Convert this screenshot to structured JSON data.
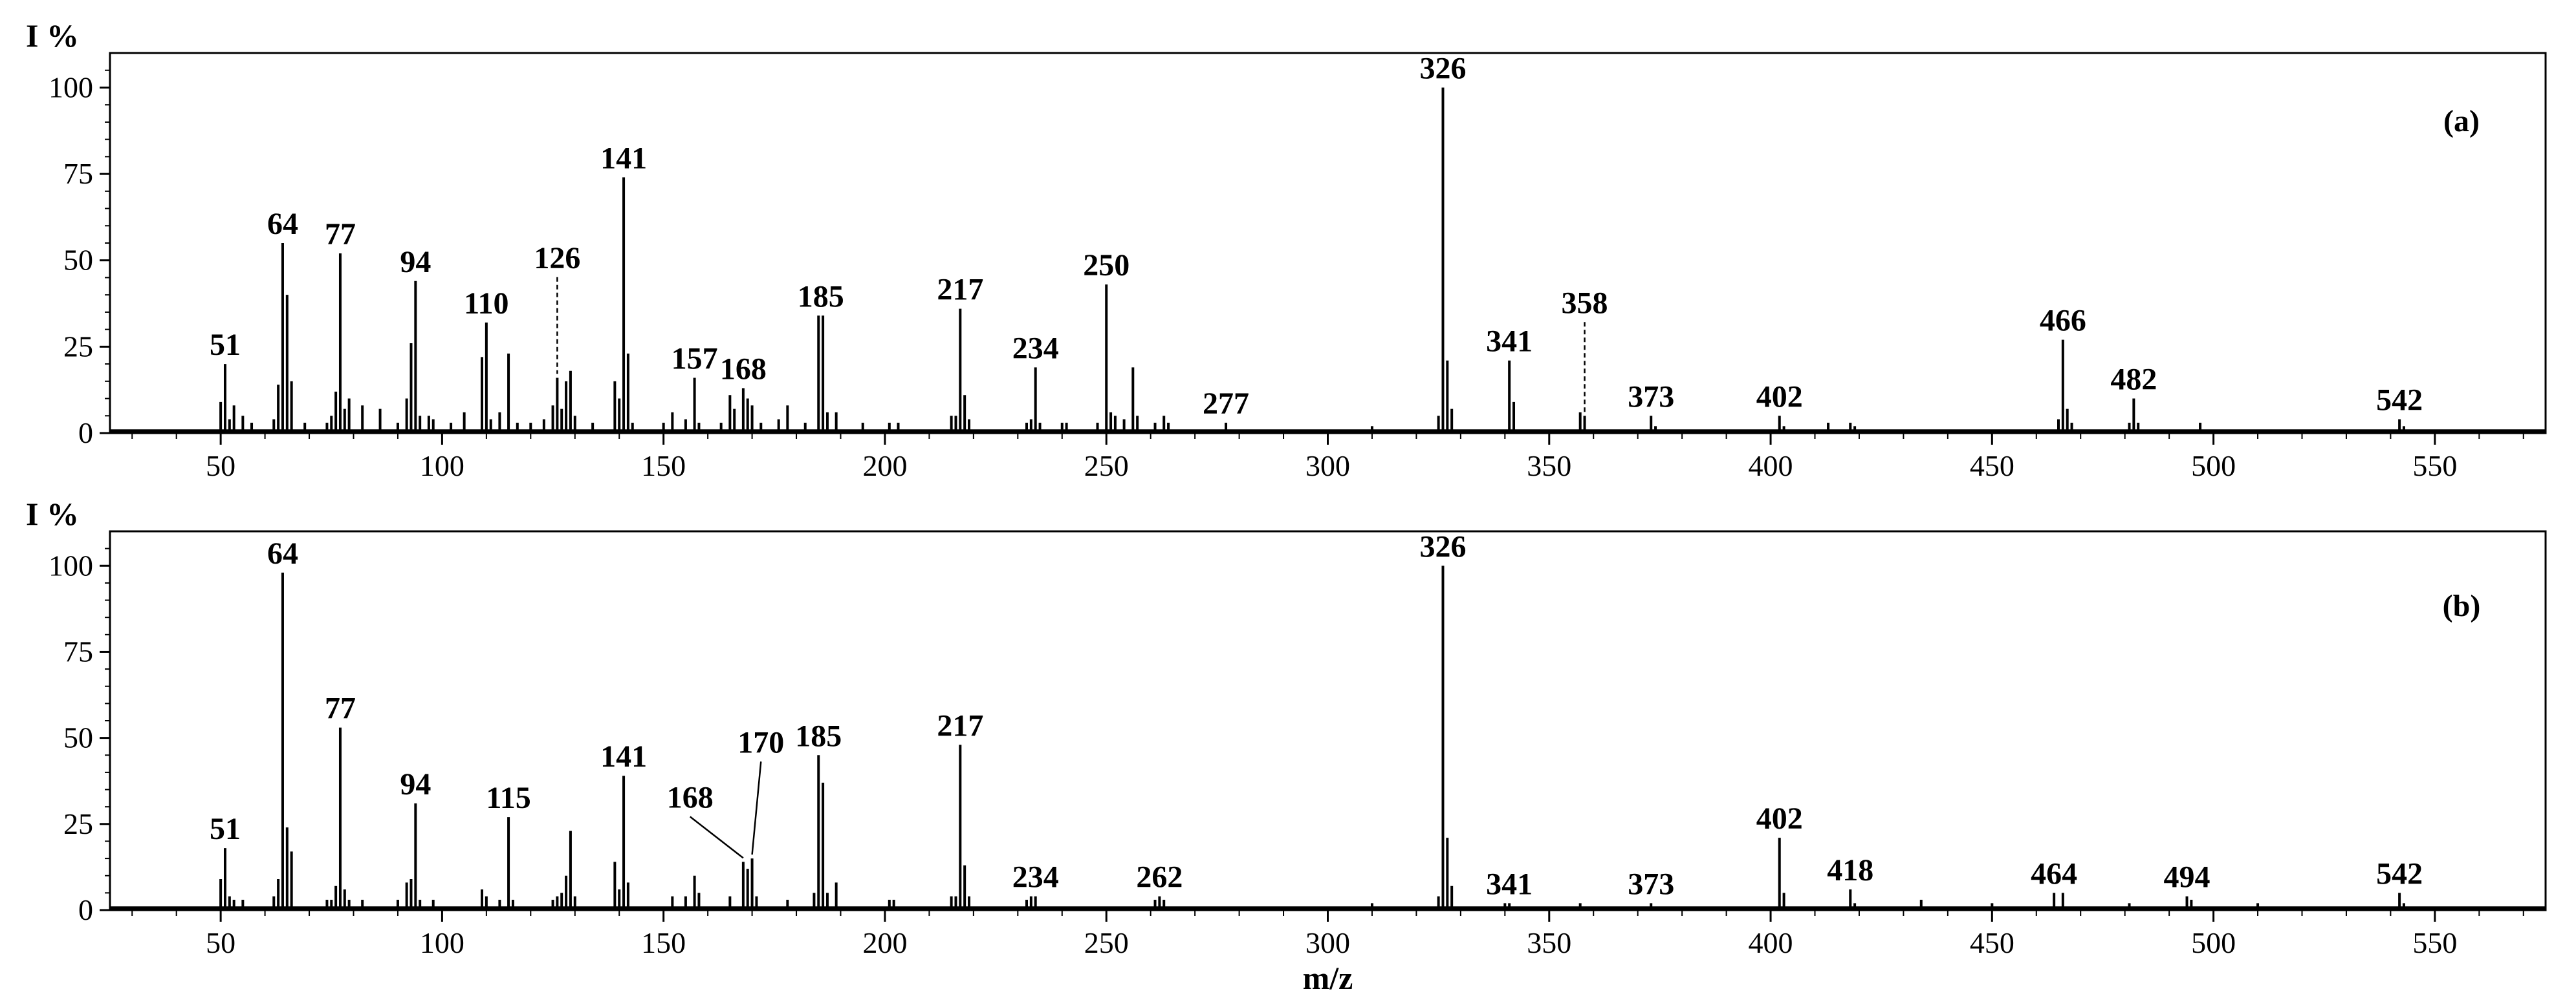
{
  "chart_data": [
    {
      "type": "bar",
      "panel_label": "(a)",
      "ylabel": "I %",
      "xlabel": "",
      "xlim": [
        25,
        575
      ],
      "ylim": [
        0,
        110
      ],
      "x_ticks": [
        50,
        100,
        150,
        200,
        250,
        300,
        350,
        400,
        450,
        500,
        550
      ],
      "y_ticks": [
        0,
        25,
        50,
        75,
        100
      ],
      "grid": false,
      "peaks": [
        {
          "x": 50,
          "y": 9
        },
        {
          "x": 51,
          "y": 20
        },
        {
          "x": 52,
          "y": 4
        },
        {
          "x": 53,
          "y": 8
        },
        {
          "x": 55,
          "y": 5
        },
        {
          "x": 57,
          "y": 3
        },
        {
          "x": 62,
          "y": 4
        },
        {
          "x": 63,
          "y": 14
        },
        {
          "x": 64,
          "y": 55
        },
        {
          "x": 65,
          "y": 40
        },
        {
          "x": 66,
          "y": 15
        },
        {
          "x": 69,
          "y": 3
        },
        {
          "x": 74,
          "y": 3
        },
        {
          "x": 75,
          "y": 5
        },
        {
          "x": 76,
          "y": 12
        },
        {
          "x": 77,
          "y": 52
        },
        {
          "x": 78,
          "y": 7
        },
        {
          "x": 79,
          "y": 10
        },
        {
          "x": 82,
          "y": 8
        },
        {
          "x": 86,
          "y": 7
        },
        {
          "x": 90,
          "y": 3
        },
        {
          "x": 92,
          "y": 10
        },
        {
          "x": 93,
          "y": 26
        },
        {
          "x": 94,
          "y": 44
        },
        {
          "x": 95,
          "y": 5
        },
        {
          "x": 97,
          "y": 5
        },
        {
          "x": 98,
          "y": 4
        },
        {
          "x": 102,
          "y": 3
        },
        {
          "x": 105,
          "y": 6
        },
        {
          "x": 109,
          "y": 22
        },
        {
          "x": 110,
          "y": 32
        },
        {
          "x": 111,
          "y": 4
        },
        {
          "x": 113,
          "y": 6
        },
        {
          "x": 115,
          "y": 23
        },
        {
          "x": 117,
          "y": 3
        },
        {
          "x": 120,
          "y": 3
        },
        {
          "x": 123,
          "y": 4
        },
        {
          "x": 125,
          "y": 8
        },
        {
          "x": 126,
          "y": 16
        },
        {
          "x": 127,
          "y": 7
        },
        {
          "x": 128,
          "y": 15
        },
        {
          "x": 129,
          "y": 18
        },
        {
          "x": 130,
          "y": 5
        },
        {
          "x": 134,
          "y": 3
        },
        {
          "x": 139,
          "y": 15
        },
        {
          "x": 140,
          "y": 10
        },
        {
          "x": 141,
          "y": 74
        },
        {
          "x": 142,
          "y": 23
        },
        {
          "x": 143,
          "y": 3
        },
        {
          "x": 150,
          "y": 3
        },
        {
          "x": 152,
          "y": 6
        },
        {
          "x": 155,
          "y": 4
        },
        {
          "x": 157,
          "y": 16
        },
        {
          "x": 158,
          "y": 3
        },
        {
          "x": 163,
          "y": 3
        },
        {
          "x": 165,
          "y": 11
        },
        {
          "x": 166,
          "y": 7
        },
        {
          "x": 168,
          "y": 13
        },
        {
          "x": 169,
          "y": 10
        },
        {
          "x": 170,
          "y": 8
        },
        {
          "x": 172,
          "y": 3
        },
        {
          "x": 176,
          "y": 4
        },
        {
          "x": 178,
          "y": 8
        },
        {
          "x": 182,
          "y": 3
        },
        {
          "x": 185,
          "y": 34
        },
        {
          "x": 186,
          "y": 34
        },
        {
          "x": 187,
          "y": 6
        },
        {
          "x": 189,
          "y": 6
        },
        {
          "x": 195,
          "y": 3
        },
        {
          "x": 201,
          "y": 3
        },
        {
          "x": 203,
          "y": 3
        },
        {
          "x": 215,
          "y": 5
        },
        {
          "x": 216,
          "y": 5
        },
        {
          "x": 217,
          "y": 36
        },
        {
          "x": 218,
          "y": 11
        },
        {
          "x": 219,
          "y": 4
        },
        {
          "x": 232,
          "y": 3
        },
        {
          "x": 233,
          "y": 4
        },
        {
          "x": 234,
          "y": 19
        },
        {
          "x": 235,
          "y": 3
        },
        {
          "x": 240,
          "y": 3
        },
        {
          "x": 241,
          "y": 3
        },
        {
          "x": 248,
          "y": 3
        },
        {
          "x": 250,
          "y": 43
        },
        {
          "x": 251,
          "y": 6
        },
        {
          "x": 252,
          "y": 5
        },
        {
          "x": 254,
          "y": 4
        },
        {
          "x": 256,
          "y": 19
        },
        {
          "x": 257,
          "y": 5
        },
        {
          "x": 261,
          "y": 3
        },
        {
          "x": 263,
          "y": 5
        },
        {
          "x": 264,
          "y": 3
        },
        {
          "x": 277,
          "y": 3
        },
        {
          "x": 310,
          "y": 2
        },
        {
          "x": 325,
          "y": 5
        },
        {
          "x": 326,
          "y": 100
        },
        {
          "x": 327,
          "y": 21
        },
        {
          "x": 328,
          "y": 7
        },
        {
          "x": 341,
          "y": 21
        },
        {
          "x": 342,
          "y": 9
        },
        {
          "x": 357,
          "y": 6
        },
        {
          "x": 358,
          "y": 5
        },
        {
          "x": 373,
          "y": 5
        },
        {
          "x": 374,
          "y": 2
        },
        {
          "x": 402,
          "y": 5
        },
        {
          "x": 403,
          "y": 2
        },
        {
          "x": 413,
          "y": 3
        },
        {
          "x": 418,
          "y": 3
        },
        {
          "x": 419,
          "y": 2
        },
        {
          "x": 465,
          "y": 4
        },
        {
          "x": 466,
          "y": 27
        },
        {
          "x": 467,
          "y": 7
        },
        {
          "x": 468,
          "y": 3
        },
        {
          "x": 481,
          "y": 3
        },
        {
          "x": 482,
          "y": 10
        },
        {
          "x": 483,
          "y": 3
        },
        {
          "x": 497,
          "y": 3
        },
        {
          "x": 542,
          "y": 4
        },
        {
          "x": 543,
          "y": 2
        }
      ],
      "annotations": [
        {
          "text": "51",
          "x": 51,
          "y": 20
        },
        {
          "text": "64",
          "x": 64,
          "y": 55
        },
        {
          "text": "77",
          "x": 77,
          "y": 52
        },
        {
          "text": "94",
          "x": 94,
          "y": 44
        },
        {
          "text": "110",
          "x": 110,
          "y": 32
        },
        {
          "text": "126",
          "x": 126,
          "y": 16,
          "label_y": 47
        },
        {
          "text": "141",
          "x": 141,
          "y": 74
        },
        {
          "text": "157",
          "x": 157,
          "y": 16
        },
        {
          "text": "168",
          "x": 168,
          "y": 13
        },
        {
          "text": "185",
          "x": 185.5,
          "y": 34
        },
        {
          "text": "217",
          "x": 217,
          "y": 36
        },
        {
          "text": "234",
          "x": 234,
          "y": 19
        },
        {
          "text": "250",
          "x": 250,
          "y": 43
        },
        {
          "text": "277",
          "x": 277,
          "y": 3
        },
        {
          "text": "326",
          "x": 326,
          "y": 100
        },
        {
          "text": "341",
          "x": 341,
          "y": 21
        },
        {
          "text": "358",
          "x": 358,
          "y": 5,
          "label_y": 34
        },
        {
          "text": "373",
          "x": 373,
          "y": 5
        },
        {
          "text": "402",
          "x": 402,
          "y": 5
        },
        {
          "text": "466",
          "x": 466,
          "y": 27
        },
        {
          "text": "482",
          "x": 482,
          "y": 10
        },
        {
          "text": "542",
          "x": 542,
          "y": 4
        }
      ]
    },
    {
      "type": "bar",
      "panel_label": "(b)",
      "ylabel": "I %",
      "xlabel": "m/z",
      "xlim": [
        25,
        575
      ],
      "ylim": [
        0,
        110
      ],
      "x_ticks": [
        50,
        100,
        150,
        200,
        250,
        300,
        350,
        400,
        450,
        500,
        550
      ],
      "y_ticks": [
        0,
        25,
        50,
        75,
        100
      ],
      "grid": false,
      "peaks": [
        {
          "x": 50,
          "y": 9
        },
        {
          "x": 51,
          "y": 18
        },
        {
          "x": 52,
          "y": 4
        },
        {
          "x": 53,
          "y": 3
        },
        {
          "x": 55,
          "y": 3
        },
        {
          "x": 62,
          "y": 4
        },
        {
          "x": 63,
          "y": 9
        },
        {
          "x": 64,
          "y": 98
        },
        {
          "x": 65,
          "y": 24
        },
        {
          "x": 66,
          "y": 17
        },
        {
          "x": 74,
          "y": 3
        },
        {
          "x": 75,
          "y": 3
        },
        {
          "x": 76,
          "y": 7
        },
        {
          "x": 77,
          "y": 53
        },
        {
          "x": 78,
          "y": 6
        },
        {
          "x": 79,
          "y": 3
        },
        {
          "x": 82,
          "y": 3
        },
        {
          "x": 90,
          "y": 3
        },
        {
          "x": 92,
          "y": 8
        },
        {
          "x": 93,
          "y": 9
        },
        {
          "x": 94,
          "y": 31
        },
        {
          "x": 95,
          "y": 3
        },
        {
          "x": 98,
          "y": 3
        },
        {
          "x": 109,
          "y": 6
        },
        {
          "x": 110,
          "y": 4
        },
        {
          "x": 113,
          "y": 3
        },
        {
          "x": 115,
          "y": 27
        },
        {
          "x": 116,
          "y": 3
        },
        {
          "x": 125,
          "y": 3
        },
        {
          "x": 126,
          "y": 4
        },
        {
          "x": 127,
          "y": 5
        },
        {
          "x": 128,
          "y": 10
        },
        {
          "x": 129,
          "y": 23
        },
        {
          "x": 130,
          "y": 4
        },
        {
          "x": 139,
          "y": 14
        },
        {
          "x": 140,
          "y": 6
        },
        {
          "x": 141,
          "y": 39
        },
        {
          "x": 142,
          "y": 8
        },
        {
          "x": 152,
          "y": 4
        },
        {
          "x": 155,
          "y": 4
        },
        {
          "x": 157,
          "y": 10
        },
        {
          "x": 158,
          "y": 5
        },
        {
          "x": 165,
          "y": 4
        },
        {
          "x": 168,
          "y": 14
        },
        {
          "x": 169,
          "y": 12
        },
        {
          "x": 170,
          "y": 15
        },
        {
          "x": 171,
          "y": 4
        },
        {
          "x": 178,
          "y": 3
        },
        {
          "x": 184,
          "y": 5
        },
        {
          "x": 185,
          "y": 45
        },
        {
          "x": 186,
          "y": 37
        },
        {
          "x": 187,
          "y": 5
        },
        {
          "x": 189,
          "y": 8
        },
        {
          "x": 201,
          "y": 3
        },
        {
          "x": 202,
          "y": 3
        },
        {
          "x": 215,
          "y": 4
        },
        {
          "x": 216,
          "y": 4
        },
        {
          "x": 217,
          "y": 48
        },
        {
          "x": 218,
          "y": 13
        },
        {
          "x": 219,
          "y": 4
        },
        {
          "x": 232,
          "y": 3
        },
        {
          "x": 233,
          "y": 4
        },
        {
          "x": 234,
          "y": 4
        },
        {
          "x": 261,
          "y": 3
        },
        {
          "x": 262,
          "y": 4
        },
        {
          "x": 263,
          "y": 3
        },
        {
          "x": 310,
          "y": 2
        },
        {
          "x": 325,
          "y": 4
        },
        {
          "x": 326,
          "y": 100
        },
        {
          "x": 327,
          "y": 21
        },
        {
          "x": 328,
          "y": 7
        },
        {
          "x": 340,
          "y": 2
        },
        {
          "x": 341,
          "y": 2
        },
        {
          "x": 357,
          "y": 2
        },
        {
          "x": 373,
          "y": 2
        },
        {
          "x": 402,
          "y": 21
        },
        {
          "x": 403,
          "y": 5
        },
        {
          "x": 418,
          "y": 6
        },
        {
          "x": 419,
          "y": 2
        },
        {
          "x": 434,
          "y": 3
        },
        {
          "x": 450,
          "y": 2
        },
        {
          "x": 464,
          "y": 5
        },
        {
          "x": 466,
          "y": 5
        },
        {
          "x": 481,
          "y": 2
        },
        {
          "x": 494,
          "y": 4
        },
        {
          "x": 495,
          "y": 3
        },
        {
          "x": 510,
          "y": 2
        },
        {
          "x": 542,
          "y": 5
        },
        {
          "x": 543,
          "y": 2
        }
      ],
      "annotations": [
        {
          "text": "51",
          "x": 51,
          "y": 18
        },
        {
          "text": "64",
          "x": 64,
          "y": 98
        },
        {
          "text": "77",
          "x": 77,
          "y": 53
        },
        {
          "text": "94",
          "x": 94,
          "y": 31
        },
        {
          "text": "115",
          "x": 115,
          "y": 27
        },
        {
          "text": "141",
          "x": 141,
          "y": 39
        },
        {
          "text": "168",
          "x": 168,
          "y": 14,
          "label_x": 156,
          "label_y": 29
        },
        {
          "text": "170",
          "x": 170,
          "y": 15,
          "label_x": 172,
          "label_y": 45
        },
        {
          "text": "185",
          "x": 185,
          "y": 45
        },
        {
          "text": "217",
          "x": 217,
          "y": 48
        },
        {
          "text": "234",
          "x": 234,
          "y": 4
        },
        {
          "text": "262",
          "x": 262,
          "y": 4
        },
        {
          "text": "326",
          "x": 326,
          "y": 100
        },
        {
          "text": "341",
          "x": 341,
          "y": 2
        },
        {
          "text": "373",
          "x": 373,
          "y": 2
        },
        {
          "text": "402",
          "x": 402,
          "y": 21
        },
        {
          "text": "418",
          "x": 418,
          "y": 6
        },
        {
          "text": "464",
          "x": 464,
          "y": 5
        },
        {
          "text": "494",
          "x": 494,
          "y": 4
        },
        {
          "text": "542",
          "x": 542,
          "y": 5
        }
      ]
    }
  ]
}
